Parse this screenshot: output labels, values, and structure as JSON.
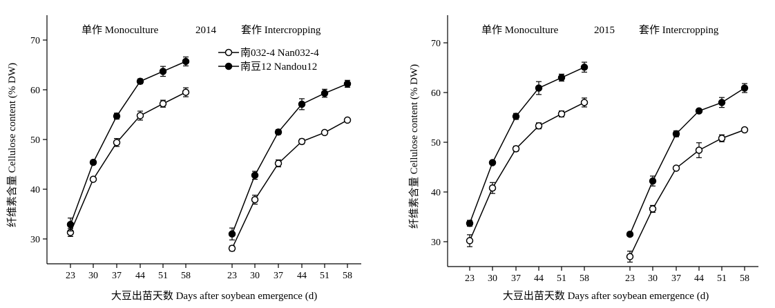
{
  "chart_data": [
    {
      "type": "line",
      "header": {
        "left": "单作 Monoculture",
        "year": "2014",
        "right": "套作 Intercropping"
      },
      "ylabel": "纤维素含量 Cellulose content (% DW)",
      "xlabel": "大豆出苗天数 Days after soybean emergence (d)",
      "ylim": [
        25,
        75
      ],
      "yticks": [
        30,
        40,
        50,
        60,
        70
      ],
      "groups": [
        "Monoculture",
        "Intercropping"
      ],
      "x": [
        23,
        30,
        37,
        44,
        51,
        58
      ],
      "legend": [
        {
          "label": "南032-4  Nan032-4",
          "marker": "open-circle"
        },
        {
          "label": "南豆12  Nandou12",
          "marker": "filled-circle"
        }
      ],
      "series": [
        {
          "name": "南032-4  Nan032-4",
          "marker": "open-circle",
          "group": "Monoculture",
          "values": [
            31.3,
            42.0,
            49.4,
            54.8,
            57.2,
            59.5
          ],
          "errors": [
            0.8,
            0.4,
            0.8,
            0.9,
            0.7,
            0.9
          ]
        },
        {
          "name": "南豆12  Nandou12",
          "marker": "filled-circle",
          "group": "Monoculture",
          "values": [
            32.9,
            45.4,
            54.7,
            61.7,
            63.7,
            65.7
          ],
          "errors": [
            1.3,
            0.4,
            0.6,
            0.5,
            1.0,
            0.9
          ]
        },
        {
          "name": "南032-4  Nan032-4",
          "marker": "open-circle",
          "group": "Intercropping",
          "values": [
            28.1,
            37.9,
            45.2,
            49.6,
            51.4,
            53.9
          ],
          "errors": [
            0.5,
            0.9,
            0.7,
            0.5,
            0.4,
            0.3
          ]
        },
        {
          "name": "南豆12  Nandou12",
          "marker": "filled-circle",
          "group": "Intercropping",
          "values": [
            31.0,
            42.8,
            51.5,
            57.1,
            59.3,
            61.2
          ],
          "errors": [
            1.2,
            0.8,
            0.5,
            1.1,
            0.8,
            0.7
          ]
        }
      ]
    },
    {
      "type": "line",
      "header": {
        "left": "单作 Monoculture",
        "year": "2015",
        "right": "套作 Intercropping"
      },
      "ylabel": "纤维素含量 Cellulose content (% DW)",
      "xlabel": "大豆出苗天数 Days after soybean emergence (d)",
      "ylim": [
        25,
        75
      ],
      "yticks": [
        30,
        40,
        50,
        60,
        70
      ],
      "groups": [
        "Monoculture",
        "Intercropping"
      ],
      "x": [
        23,
        30,
        37,
        44,
        51,
        58
      ],
      "series": [
        {
          "name": "南032-4  Nan032-4",
          "marker": "open-circle",
          "group": "Monoculture",
          "values": [
            30.2,
            40.8,
            48.7,
            53.3,
            55.7,
            58.0
          ],
          "errors": [
            1.2,
            1.1,
            0.5,
            0.6,
            0.6,
            0.9
          ]
        },
        {
          "name": "南豆12  Nandou12",
          "marker": "filled-circle",
          "group": "Monoculture",
          "values": [
            33.7,
            45.9,
            55.2,
            60.9,
            63.0,
            65.1
          ],
          "errors": [
            0.6,
            0.3,
            0.6,
            1.3,
            0.7,
            1.0
          ]
        },
        {
          "name": "南032-4  Nan032-4",
          "marker": "open-circle",
          "group": "Intercropping",
          "values": [
            27.0,
            36.6,
            44.8,
            48.4,
            50.8,
            52.5
          ],
          "errors": [
            1.1,
            0.7,
            0.4,
            1.5,
            0.7,
            0.3
          ]
        },
        {
          "name": "南豆12  Nandou12",
          "marker": "filled-circle",
          "group": "Intercropping",
          "values": [
            31.5,
            42.2,
            51.7,
            56.3,
            58.0,
            60.9
          ],
          "errors": [
            0.4,
            1.0,
            0.6,
            0.3,
            1.0,
            0.9
          ]
        }
      ]
    }
  ]
}
